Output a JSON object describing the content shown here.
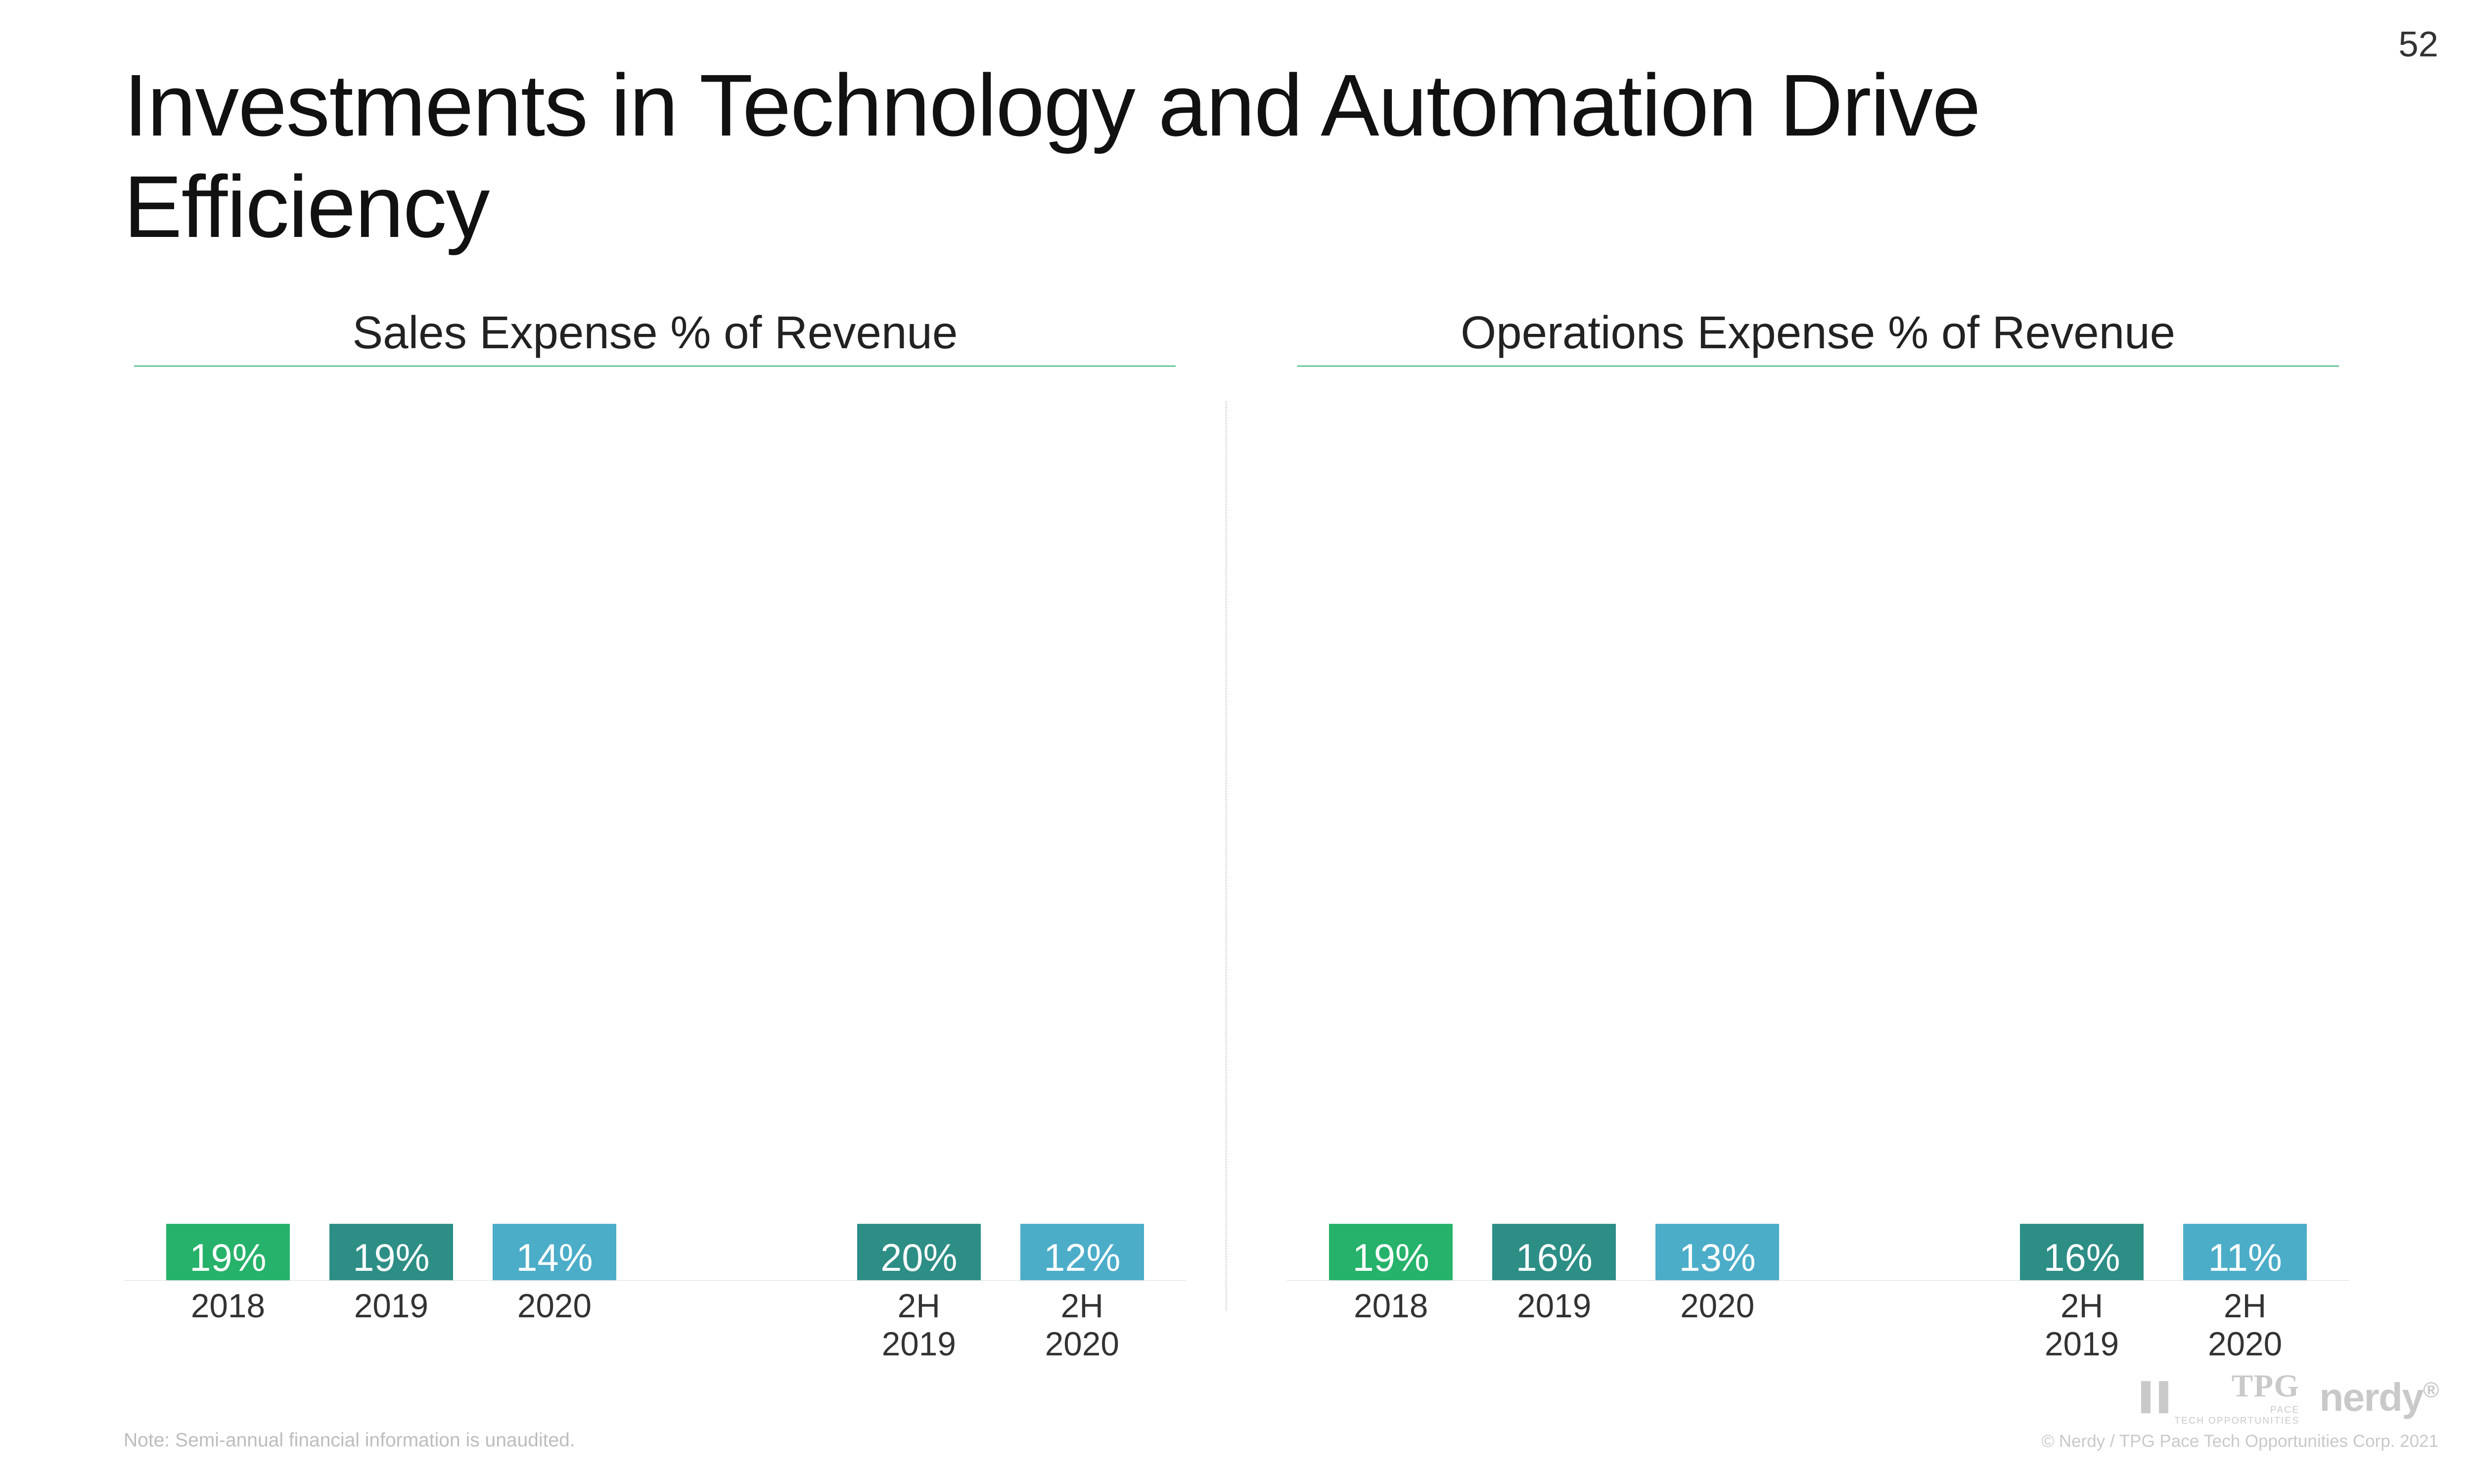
{
  "page_number": "52",
  "title": "Investments in Technology and Automation Drive Efficiency",
  "footnote": "Note: Semi-annual financial information is unaudited.",
  "copyright": "© Nerdy / TPG Pace Tech Opportunities Corp. 2021",
  "logos": {
    "tpg": "TPG",
    "tpg_sub1": "PACE",
    "tpg_sub2": "TECH OPPORTUNITIES",
    "nerdy": "nerdy"
  },
  "style": {
    "background_color": "#ffffff",
    "title_color": "#111111",
    "title_fontsize_vw": 3.55,
    "title_weight": 300,
    "chart_title_fontsize_vw": 1.85,
    "bar_value_label_color": "#ffffff",
    "bar_value_label_fontsize_vw": 1.55,
    "x_label_fontsize_vw": 1.35,
    "x_label_color": "#333333",
    "baseline_color": "#dcdcdc",
    "divider_color": "#bdbdbd",
    "footnote_color": "#bdbdbd",
    "logo_color": "#c9c9c9",
    "bar_width_vw": 5.0,
    "intra_cluster_gap_vw": 1.6
  },
  "charts": [
    {
      "title": "Sales Expense % of Revenue",
      "type": "bar",
      "underline_color": "#26b26a",
      "y_max_percent": 22,
      "clusters": [
        {
          "side": "left",
          "bars": [
            {
              "label": "2018",
              "value": 19,
              "display": "19%",
              "color": "#26b26a"
            },
            {
              "label": "2019",
              "value": 19,
              "display": "19%",
              "color": "#2d8e86"
            },
            {
              "label": "2020",
              "value": 14,
              "display": "14%",
              "color": "#4cadc9"
            }
          ]
        },
        {
          "side": "right",
          "bars": [
            {
              "label": "2H 2019",
              "value": 20,
              "display": "20%",
              "color": "#2d8e86"
            },
            {
              "label": "2H 2020",
              "value": 12,
              "display": "12%",
              "color": "#4cadc9"
            }
          ]
        }
      ]
    },
    {
      "title": "Operations Expense % of Revenue",
      "type": "bar",
      "underline_color": "#26b26a",
      "y_max_percent": 22,
      "clusters": [
        {
          "side": "left",
          "bars": [
            {
              "label": "2018",
              "value": 19,
              "display": "19%",
              "color": "#26b26a"
            },
            {
              "label": "2019",
              "value": 16,
              "display": "16%",
              "color": "#2d8e86"
            },
            {
              "label": "2020",
              "value": 13,
              "display": "13%",
              "color": "#4cadc9"
            }
          ]
        },
        {
          "side": "right",
          "bars": [
            {
              "label": "2H 2019",
              "value": 16,
              "display": "16%",
              "color": "#2d8e86"
            },
            {
              "label": "2H 2020",
              "value": 11,
              "display": "11%",
              "color": "#4cadc9"
            }
          ]
        }
      ]
    }
  ]
}
